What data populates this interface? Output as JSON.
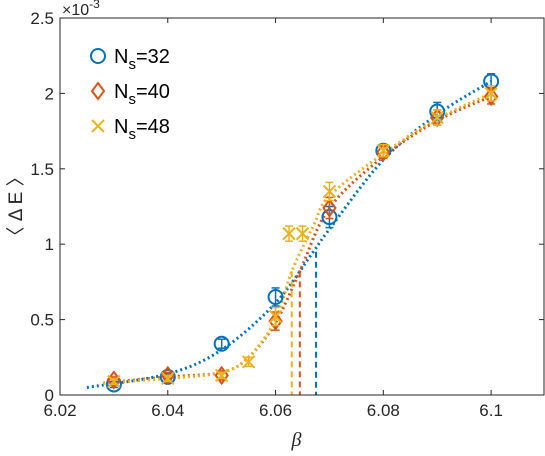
{
  "chart_data": {
    "type": "scatter",
    "xlabel": "β",
    "ylabel": "〈 Δ E 〉",
    "y_multiplier": "×10",
    "y_multiplier_exp": "-3",
    "xlim": [
      6.02,
      6.11
    ],
    "ylim": [
      0,
      2.5
    ],
    "x_ticks": [
      6.02,
      6.04,
      6.06,
      6.08,
      6.1
    ],
    "x_tick_labels": [
      "6.02",
      "6.04",
      "6.06",
      "6.08",
      "6.1"
    ],
    "y_ticks": [
      0,
      0.5,
      1,
      1.5,
      2,
      2.5
    ],
    "y_tick_labels": [
      "0",
      "0.5",
      "1",
      "1.5",
      "2",
      "2.5"
    ],
    "grid": false,
    "legend_position": "top-left",
    "series": [
      {
        "name": "N_s=32",
        "legend_main": "N",
        "legend_sub": "s",
        "legend_rest": "=32",
        "marker": "circle",
        "color": "#0072BD",
        "x": [
          6.03,
          6.04,
          6.05,
          6.06,
          6.07,
          6.08,
          6.09,
          6.1
        ],
        "y": [
          0.07,
          0.12,
          0.34,
          0.65,
          1.18,
          1.62,
          1.88,
          2.08
        ],
        "err": [
          0.02,
          0.02,
          0.03,
          0.06,
          0.07,
          0.04,
          0.06,
          0.05
        ],
        "fit_x": [
          6.025,
          6.04,
          6.05,
          6.06,
          6.067,
          6.07,
          6.08,
          6.09,
          6.1
        ],
        "fit_y": [
          0.05,
          0.14,
          0.3,
          0.61,
          0.95,
          1.1,
          1.56,
          1.86,
          2.08
        ],
        "crossing_x": 6.0675,
        "crossing_y": 0.95
      },
      {
        "name": "N_s=40",
        "legend_main": "N",
        "legend_sub": "s",
        "legend_rest": "=40",
        "marker": "diamond",
        "color": "#D95319",
        "x": [
          6.03,
          6.04,
          6.05,
          6.06,
          6.07,
          6.08,
          6.09,
          6.1
        ],
        "y": [
          0.1,
          0.13,
          0.13,
          0.49,
          1.24,
          1.61,
          1.84,
          1.98
        ],
        "err": [
          0.02,
          0.02,
          0.03,
          0.06,
          0.07,
          0.04,
          0.05,
          0.05
        ],
        "fit_x": [
          6.028,
          6.04,
          6.05,
          6.055,
          6.06,
          6.0645,
          6.07,
          6.08,
          6.09,
          6.1
        ],
        "fit_y": [
          0.08,
          0.12,
          0.15,
          0.25,
          0.48,
          0.82,
          1.24,
          1.58,
          1.82,
          1.98
        ],
        "crossing_x": 6.0645,
        "crossing_y": 0.82
      },
      {
        "name": "N_s=48",
        "legend_main": "N",
        "legend_sub": "s",
        "legend_rest": "=48",
        "marker": "x",
        "color": "#EDB120",
        "x": [
          6.03,
          6.04,
          6.05,
          6.055,
          6.06,
          6.0625,
          6.065,
          6.07,
          6.08,
          6.09,
          6.1
        ],
        "y": [
          0.09,
          0.11,
          0.13,
          0.22,
          0.52,
          1.07,
          1.07,
          1.35,
          1.62,
          1.84,
          2.0
        ],
        "err": [
          0.02,
          0.02,
          0.02,
          0.03,
          0.06,
          0.05,
          0.05,
          0.06,
          0.04,
          0.05,
          0.05
        ],
        "fit_x": [
          6.028,
          6.04,
          6.05,
          6.055,
          6.06,
          6.063,
          6.067,
          6.07,
          6.08,
          6.09,
          6.1
        ],
        "fit_y": [
          0.08,
          0.11,
          0.15,
          0.25,
          0.5,
          0.82,
          1.12,
          1.32,
          1.6,
          1.83,
          2.0
        ],
        "crossing_x": 6.063,
        "crossing_y": 0.82
      }
    ]
  }
}
